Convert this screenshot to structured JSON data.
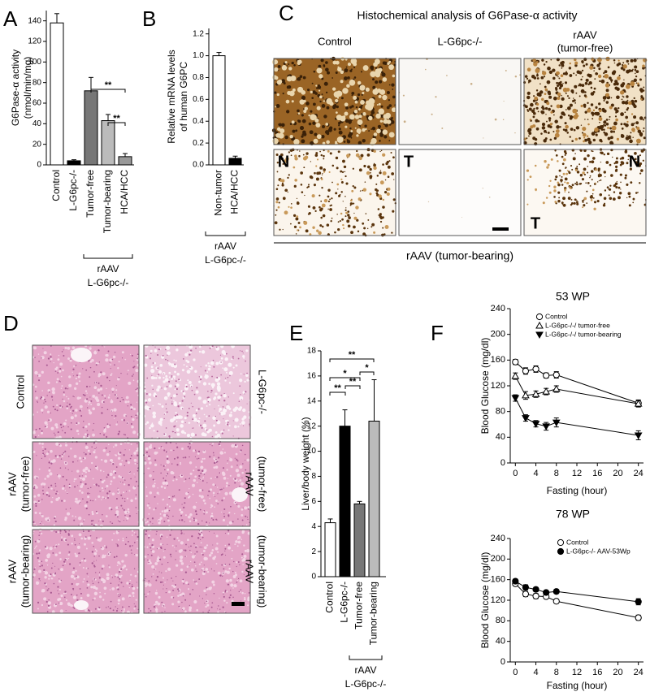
{
  "chart_data": [
    {
      "panel": "A",
      "type": "bar",
      "ylabel": [
        "G6Pase-α activity",
        "(nmol/min/mg)"
      ],
      "categories": [
        "Control",
        "L-G6pc-/-",
        "Tumor-free",
        "Tumor-bearing",
        "HCA/HCC"
      ],
      "values": [
        138,
        4,
        72,
        43,
        8
      ],
      "errors": [
        9,
        1,
        13,
        6,
        3
      ],
      "colors": [
        "#ffffff",
        "#000000",
        "#777777",
        "#bbbbbb",
        "#999999"
      ],
      "ylim": [
        0,
        150
      ],
      "yticks": [
        0,
        20,
        40,
        60,
        80,
        100,
        120,
        140
      ],
      "annotations": [
        "**",
        "**"
      ],
      "group_label": [
        "rAAV",
        "L-G6pc-/-"
      ]
    },
    {
      "panel": "B",
      "type": "bar",
      "ylabel": [
        "Relative mRNA levels",
        "of human G6PC"
      ],
      "categories": [
        "Non-tumor",
        "HCA/HCC"
      ],
      "values": [
        1.0,
        0.06
      ],
      "errors": [
        0.03,
        0.02
      ],
      "colors": [
        "#ffffff",
        "#000000"
      ],
      "ylim": [
        0,
        1.25
      ],
      "yticks": [
        {
          "value": 0,
          "label": "0.0"
        },
        0.2,
        0.4,
        0.6,
        0.8,
        {
          "value": 1,
          "label": "1.0"
        },
        {
          "value": 1.2,
          "label": "1.2"
        }
      ],
      "annotations": [],
      "group_label": [
        "rAAV",
        "L-G6pc-/-"
      ]
    },
    {
      "panel": "E",
      "type": "bar",
      "ylabel": [
        "Liver/body weight (%)"
      ],
      "categories": [
        "Control",
        "L-G6pc-/-",
        "Tumor-free",
        "Tumor-bearing"
      ],
      "values": [
        4.3,
        12.0,
        5.8,
        12.4
      ],
      "errors": [
        0.3,
        1.3,
        0.2,
        3.3
      ],
      "colors": [
        "#ffffff",
        "#000000",
        "#777777",
        "#bbbbbb"
      ],
      "ylim": [
        0,
        18
      ],
      "yticks": [
        0,
        2,
        4,
        6,
        8,
        10,
        12,
        14,
        16,
        18
      ],
      "annotations": [
        "**",
        "*",
        "*",
        "**",
        "**"
      ],
      "group_label": [
        "rAAV",
        "L-G6pc-/-"
      ]
    },
    {
      "panel": "F",
      "type": "line",
      "title": "53 WP",
      "xlabel": "Fasting (hour)",
      "ylabel": "Blood Glucose (mg/dl)",
      "x": [
        0,
        2,
        4,
        6,
        8,
        24
      ],
      "xlim": [
        -1,
        25
      ],
      "xticks": [
        0,
        4,
        8,
        12,
        16,
        20,
        24
      ],
      "ylim": [
        0,
        240
      ],
      "yticks": [
        0,
        40,
        80,
        120,
        160,
        200,
        240
      ],
      "legend": "upper right",
      "series": [
        {
          "name": "Control",
          "color": "#000000",
          "marker": "open-circle",
          "values": [
            157,
            143,
            146,
            136,
            137,
            93
          ],
          "errors": [
            4,
            5,
            5,
            4,
            5,
            5
          ]
        },
        {
          "name": "L-G6pc-/-/ tumor-free",
          "color": "#000000",
          "marker": "open-triangle",
          "values": [
            135,
            105,
            107,
            111,
            115,
            92
          ],
          "errors": [
            5,
            6,
            5,
            5,
            5,
            5
          ]
        },
        {
          "name": "L-G6pc-/-/ tumor-bearing",
          "color": "#000000",
          "marker": "filled-triangle-down",
          "values": [
            101,
            70,
            61,
            57,
            63,
            43
          ],
          "errors": [
            5,
            5,
            5,
            6,
            7,
            7
          ]
        }
      ]
    },
    {
      "type": "line",
      "title": "78 WP",
      "xlabel": "Fasting (hour)",
      "ylabel": "Blood Glucose (mg/dl)",
      "x": [
        0,
        2,
        4,
        6,
        8,
        24
      ],
      "xlim": [
        -1,
        25
      ],
      "xticks": [
        0,
        4,
        8,
        12,
        16,
        20,
        24
      ],
      "ylim": [
        0,
        240
      ],
      "yticks": [
        0,
        40,
        80,
        120,
        160,
        200,
        240
      ],
      "legend": "upper right",
      "series": [
        {
          "name": "Control",
          "color": "#000000",
          "marker": "open-circle",
          "values": [
            152,
            132,
            128,
            127,
            118,
            86
          ],
          "errors": [
            4,
            5,
            5,
            4,
            4,
            5
          ]
        },
        {
          "name": "L-G6pc-/- AAV-53Wp",
          "color": "#000000",
          "marker": "filled-circle",
          "values": [
            157,
            145,
            141,
            135,
            137,
            117
          ],
          "errors": [
            4,
            5,
            4,
            4,
            4,
            6
          ]
        }
      ]
    }
  ],
  "panel_c": {
    "panel": "C",
    "title": "Histochemical analysis of G6Pase-α activity",
    "columns": [
      [
        "Control"
      ],
      [
        "L-G6pc-/-"
      ],
      [
        "rAAV",
        "(tumor-free)"
      ]
    ],
    "markers": [
      "N",
      "T",
      "T",
      "N"
    ],
    "footer": "rAAV (tumor-bearing)"
  },
  "panel_d": {
    "panel": "D",
    "labels": [
      [
        "Control"
      ],
      [
        "L-G6pc-/-"
      ],
      [
        "rAAV",
        "(tumor-free)"
      ],
      [
        "rAAV",
        "(tumor-free)"
      ],
      [
        "rAAV",
        "(tumor-bearing)"
      ],
      [
        "rAAV",
        "(tumor-bearing)"
      ]
    ]
  }
}
